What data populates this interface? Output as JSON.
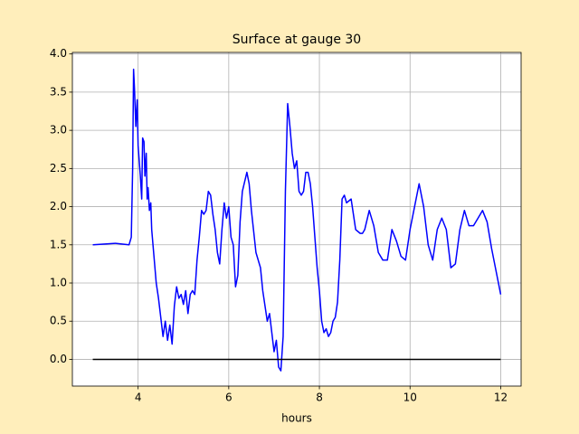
{
  "chart_data": {
    "type": "line",
    "title": "Surface at gauge 30",
    "xlabel": "hours",
    "xlim": [
      2.55,
      12.45
    ],
    "ylim": [
      -0.35,
      4.02
    ],
    "xticks": [
      4,
      6,
      8,
      10,
      12
    ],
    "yticks": [
      {
        "value": 0,
        "label": "0.0"
      },
      {
        "value": 0.5,
        "label": "0.5"
      },
      {
        "value": 1,
        "label": "1.0"
      },
      {
        "value": 1.5,
        "label": "1.5"
      },
      {
        "value": 2,
        "label": "2.0"
      },
      {
        "value": 2.5,
        "label": "2.5"
      },
      {
        "value": 3,
        "label": "3.0"
      },
      {
        "value": 3.5,
        "label": "3.5"
      },
      {
        "value": 4,
        "label": "4.0"
      }
    ],
    "grid": true,
    "series": [
      {
        "color": "#0000ff",
        "x": [
          3.0,
          3.5,
          3.8,
          3.85,
          3.88,
          3.9,
          3.92,
          3.95,
          3.98,
          4.0,
          4.05,
          4.08,
          4.1,
          4.13,
          4.15,
          4.18,
          4.2,
          4.22,
          4.25,
          4.28,
          4.3,
          4.35,
          4.4,
          4.45,
          4.5,
          4.55,
          4.6,
          4.65,
          4.7,
          4.75,
          4.8,
          4.85,
          4.9,
          4.95,
          5.0,
          5.05,
          5.1,
          5.15,
          5.2,
          5.25,
          5.3,
          5.35,
          5.4,
          5.45,
          5.5,
          5.55,
          5.6,
          5.65,
          5.7,
          5.75,
          5.8,
          5.85,
          5.9,
          5.95,
          6.0,
          6.05,
          6.1,
          6.15,
          6.2,
          6.25,
          6.3,
          6.4,
          6.45,
          6.5,
          6.6,
          6.7,
          6.75,
          6.8,
          6.85,
          6.9,
          6.95,
          7.0,
          7.05,
          7.1,
          7.15,
          7.2,
          7.25,
          7.3,
          7.35,
          7.4,
          7.45,
          7.5,
          7.55,
          7.6,
          7.65,
          7.7,
          7.75,
          7.8,
          7.85,
          7.9,
          7.95,
          8.0,
          8.05,
          8.1,
          8.15,
          8.2,
          8.25,
          8.3,
          8.35,
          8.4,
          8.45,
          8.5,
          8.55,
          8.6,
          8.7,
          8.8,
          8.9,
          8.95,
          9.0,
          9.1,
          9.2,
          9.3,
          9.4,
          9.5,
          9.6,
          9.7,
          9.8,
          9.9,
          10.0,
          10.1,
          10.2,
          10.3,
          10.4,
          10.5,
          10.6,
          10.7,
          10.8,
          10.9,
          11.0,
          11.1,
          11.2,
          11.3,
          11.4,
          11.5,
          11.6,
          11.7,
          11.8,
          11.9,
          11.95,
          12.0
        ],
        "values": [
          1.5,
          1.52,
          1.5,
          1.6,
          2.5,
          3.8,
          3.55,
          3.05,
          3.4,
          2.8,
          2.4,
          2.1,
          2.9,
          2.85,
          2.4,
          2.7,
          2.1,
          2.25,
          1.95,
          2.05,
          1.7,
          1.35,
          1.0,
          0.8,
          0.55,
          0.3,
          0.5,
          0.25,
          0.45,
          0.2,
          0.7,
          0.95,
          0.8,
          0.85,
          0.72,
          0.9,
          0.6,
          0.85,
          0.9,
          0.85,
          1.3,
          1.6,
          1.95,
          1.9,
          1.95,
          2.2,
          2.15,
          1.9,
          1.7,
          1.4,
          1.25,
          1.7,
          2.05,
          1.85,
          2.0,
          1.6,
          1.5,
          0.95,
          1.1,
          1.8,
          2.2,
          2.45,
          2.3,
          1.95,
          1.4,
          1.2,
          0.9,
          0.7,
          0.5,
          0.6,
          0.35,
          0.1,
          0.25,
          -0.1,
          -0.15,
          0.3,
          2.2,
          3.35,
          3.05,
          2.7,
          2.5,
          2.6,
          2.2,
          2.15,
          2.2,
          2.45,
          2.45,
          2.3,
          2.0,
          1.6,
          1.2,
          0.9,
          0.5,
          0.35,
          0.4,
          0.3,
          0.35,
          0.5,
          0.55,
          0.75,
          1.3,
          2.1,
          2.15,
          2.05,
          2.1,
          1.7,
          1.65,
          1.65,
          1.7,
          1.95,
          1.75,
          1.4,
          1.3,
          1.3,
          1.7,
          1.55,
          1.35,
          1.3,
          1.7,
          2.0,
          2.3,
          2.0,
          1.5,
          1.3,
          1.7,
          1.85,
          1.7,
          1.2,
          1.25,
          1.7,
          1.95,
          1.75,
          1.75,
          1.85,
          1.95,
          1.8,
          1.45,
          1.15,
          1.0,
          0.85
        ]
      },
      {
        "color": "#000000",
        "x": [
          3,
          12
        ],
        "values": [
          0,
          0
        ]
      }
    ]
  }
}
